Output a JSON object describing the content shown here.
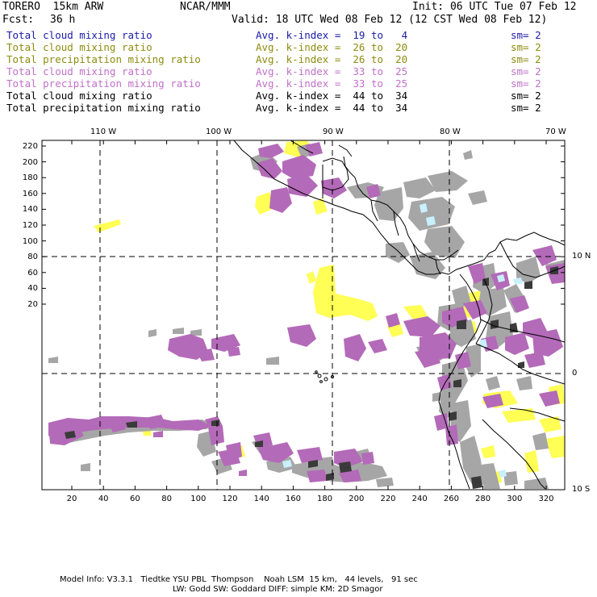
{
  "header": {
    "model": "TORERO  15km ARW",
    "org": "NCAR/MMM",
    "init": "Init: 06 UTC Tue 07 Feb 12",
    "fcst_label": "Fcst:",
    "fcst_value": "36 h",
    "valid": "Valid: 18 UTC Wed 08 Feb 12 (12 CST Wed 08 Feb 12)"
  },
  "legend": [
    {
      "field": "Total cloud mixing ratio",
      "range": "Avg. k-index =  19 to   4",
      "sm": "sm= 2",
      "color": "#1a1aa8"
    },
    {
      "field": "Total cloud mixing ratio",
      "range": "Avg. k-index =  26 to  20",
      "sm": "sm= 2",
      "color": "#8c8c10"
    },
    {
      "field": "Total precipitation mixing ratio",
      "range": "Avg. k-index =  26 to  20",
      "sm": "sm= 2",
      "color": "#8c8c10"
    },
    {
      "field": "Total cloud mixing ratio",
      "range": "Avg. k-index =  33 to  25",
      "sm": "sm= 2",
      "color": "#c070c8"
    },
    {
      "field": "Total precipitation mixing ratio",
      "range": "Avg. k-index =  33 to  25",
      "sm": "sm= 2",
      "color": "#c070c8"
    },
    {
      "field": "Total cloud mixing ratio",
      "range": "Avg. k-index =  44 to  34",
      "sm": "sm= 2",
      "color": "#000000"
    },
    {
      "field": "Total precipitation mixing ratio",
      "range": "Avg. k-index =  44 to  34",
      "sm": "sm= 2",
      "color": "#000000"
    }
  ],
  "axes": {
    "lon_labels": [
      "110 W",
      "100 W",
      "90 W",
      "80 W",
      "70 W"
    ],
    "lat_labels": [
      "10 N",
      "0",
      "10 S"
    ],
    "y_ticks": [
      "220",
      "200",
      "180",
      "160",
      "140",
      "120",
      "100",
      "80",
      "60",
      "40",
      "20"
    ],
    "x_ticks": [
      "20",
      "40",
      "60",
      "80",
      "100",
      "120",
      "140",
      "160",
      "180",
      "200",
      "220",
      "240",
      "260",
      "280",
      "300",
      "320"
    ]
  },
  "footer": {
    "line1": "Model Info: V3.3.1   Tiedtke YSU PBL  Thompson    Noah LSM  15 km,   44 levels,   91 sec",
    "line2": "LW: Godd SW: Goddard DIFF: simple KM: 2D Smagor"
  },
  "colors": {
    "gray_cloud": "#a6a6a6",
    "dark_cloud": "#3a3a3a",
    "magenta_cloud": "#b36ab8",
    "yellow_cloud": "#ffff55",
    "cyan_cloud": "#c8f0ff"
  }
}
